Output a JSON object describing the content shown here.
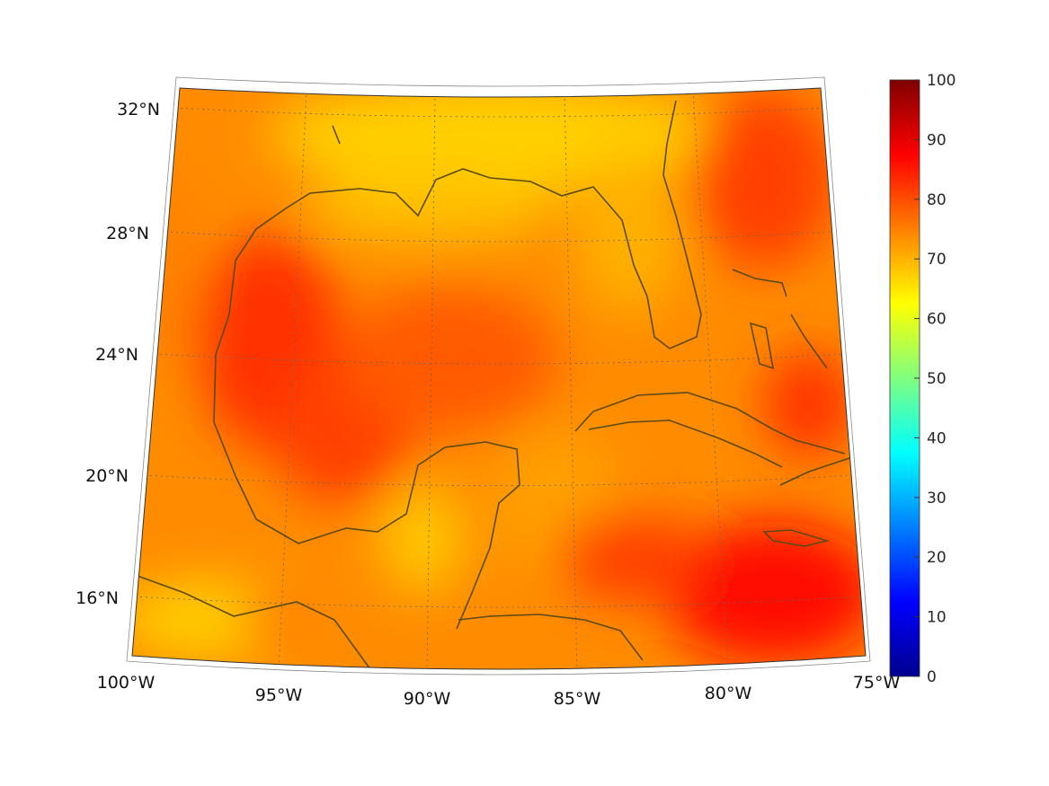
{
  "map": {
    "projection": "lambert",
    "lat_labels": [
      "32°N",
      "28°N",
      "24°N",
      "20°N",
      "16°N"
    ],
    "lon_labels": [
      "100°W",
      "95°W",
      "90°W",
      "85°W",
      "80°W",
      "75°W"
    ],
    "extent": {
      "lon": [
        -100,
        -75
      ],
      "lat": [
        14,
        33
      ]
    },
    "coastline_color": "#5a4a1a"
  },
  "colorbar": {
    "min": 0,
    "max": 100,
    "ticks": [
      "0",
      "10",
      "20",
      "30",
      "40",
      "50",
      "60",
      "70",
      "80",
      "90",
      "100"
    ],
    "colormap": "jet"
  }
}
